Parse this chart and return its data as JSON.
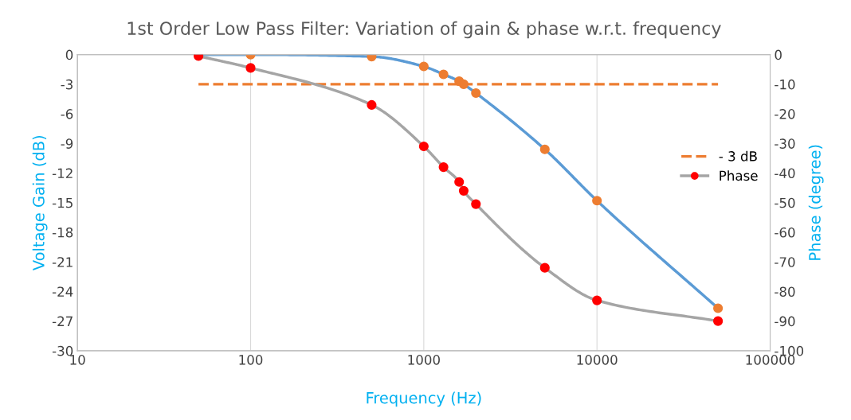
{
  "chart_data": {
    "type": "line",
    "title": "1st Order Low Pass Filter: Variation of gain & phase w.r.t. frequency",
    "xlabel": "Frequency (Hz)",
    "ylabel": "Voltage Gain (dB)",
    "y2label": "Phase (degree)",
    "log": "x",
    "xlim": [
      10,
      100000
    ],
    "xticks": [
      10,
      100,
      1000,
      10000,
      100000
    ],
    "ylim": [
      -30,
      0
    ],
    "yticks": [
      0,
      -3,
      -6,
      -9,
      -12,
      -15,
      -18,
      -21,
      -24,
      -27,
      -30
    ],
    "y2lim": [
      -100,
      0
    ],
    "y2ticks": [
      0,
      -10,
      -20,
      -30,
      -40,
      -50,
      -60,
      -70,
      -80,
      -90,
      -100
    ],
    "grid": "x",
    "legend": "right",
    "marker": "circle",
    "series": [
      {
        "color": "#5b9bd5",
        "colors": [
          "#ed7d31",
          "#ed7d31",
          "#ed7d31",
          "#ed7d31",
          "#ed7d31",
          "#ed7d31",
          "#ed7d31",
          "#ed7d31",
          "#ed7d31",
          "#ed7d31",
          "#ed7d31"
        ],
        "x": [
          50,
          100,
          500,
          1000,
          1300,
          1600,
          1700,
          2000,
          5000,
          10000,
          50000
        ],
        "values": [
          0,
          0,
          -0.2,
          -1.2,
          -2.0,
          -2.7,
          -3.0,
          -3.9,
          -9.6,
          -14.8,
          -25.7
        ]
      },
      {
        "name": "- 3 dB",
        "color": "#ed7d31",
        "line_style": "dashed",
        "marker": "none",
        "x": [
          50,
          50000
        ],
        "values": [
          -3,
          -3
        ]
      },
      {
        "name": "Phase",
        "axis": "y2",
        "color": "#a5a5a5",
        "colors": [
          "#ff0000",
          "#ff0000",
          "#ff0000",
          "#ff0000",
          "#ff0000",
          "#ff0000",
          "#ff0000",
          "#ff0000",
          "#ff0000",
          "#ff0000",
          "#ff0000"
        ],
        "x": [
          50,
          100,
          500,
          1000,
          1300,
          1600,
          1700,
          2000,
          5000,
          10000,
          50000
        ],
        "values": [
          -0.5,
          -4.5,
          -17,
          -31,
          -38,
          -43,
          -46,
          -50.5,
          -72,
          -83,
          -90
        ]
      }
    ]
  }
}
